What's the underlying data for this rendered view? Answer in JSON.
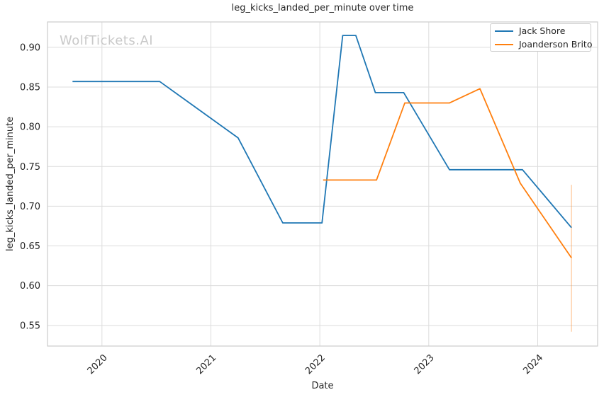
{
  "watermark": "WolfTickets.AI",
  "chart_data": {
    "type": "line",
    "title": "leg_kicks_landed_per_minute over time",
    "xlabel": "Date",
    "ylabel": "leg_kicks_landed_per_minute",
    "xlim": [
      2019.5,
      2024.55
    ],
    "ylim": [
      0.524,
      0.932
    ],
    "xticks": [
      2020,
      2021,
      2022,
      2023,
      2024
    ],
    "yticks": [
      0.55,
      0.6,
      0.65,
      0.7,
      0.75,
      0.8,
      0.85,
      0.9
    ],
    "grid": true,
    "legend_position": "upper right",
    "colors": {
      "grid": "#dcdcdc",
      "spine": "#cccccc",
      "text": "#262626",
      "watermark": "#c9c9c9",
      "background": "#ffffff"
    },
    "series": [
      {
        "name": "Jack Shore",
        "color": "#1f77b4",
        "x": [
          2019.73,
          2020.53,
          2021.25,
          2021.66,
          2022.02,
          2022.21,
          2022.33,
          2022.51,
          2022.77,
          2023.19,
          2023.86,
          2024.31
        ],
        "y": [
          0.857,
          0.857,
          0.786,
          0.679,
          0.679,
          0.915,
          0.915,
          0.843,
          0.843,
          0.746,
          0.746,
          0.673
        ]
      },
      {
        "name": "Joanderson Brito",
        "color": "#ff7f0e",
        "x": [
          2022.03,
          2022.52,
          2022.78,
          2023.19,
          2023.47,
          2023.84,
          2024.31
        ],
        "y": [
          0.733,
          0.733,
          0.83,
          0.83,
          0.848,
          0.729,
          0.635
        ],
        "error_bar": {
          "x": 2024.31,
          "y_low": 0.542,
          "y_high": 0.727
        }
      }
    ]
  }
}
